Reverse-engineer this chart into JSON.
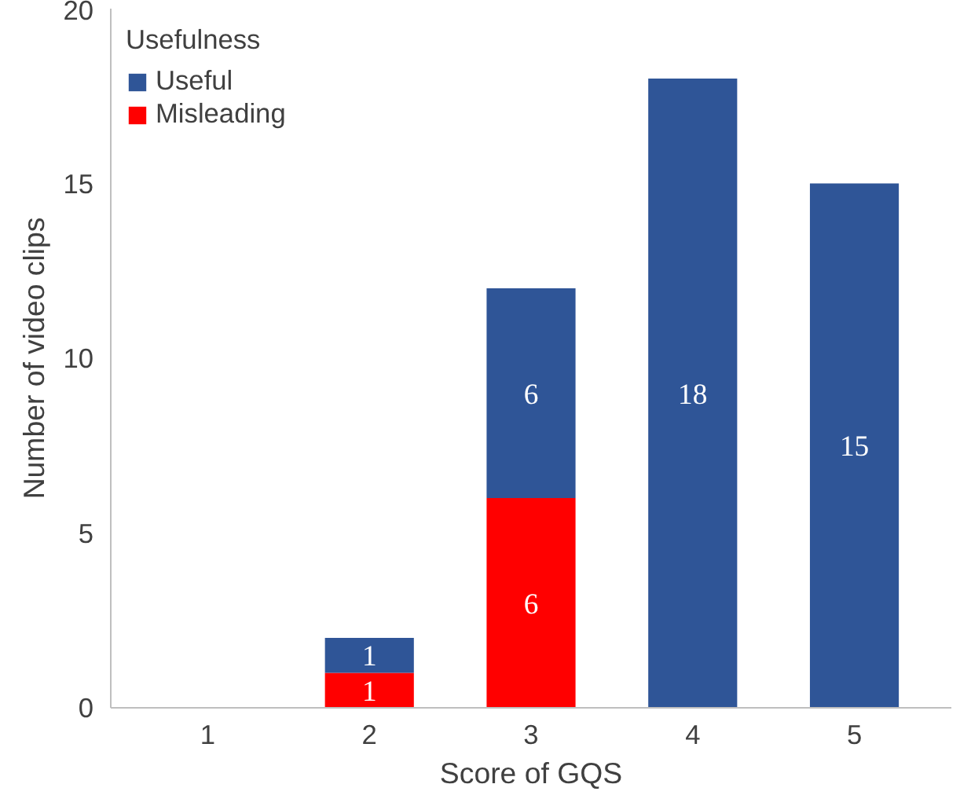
{
  "chart_data": {
    "type": "bar",
    "stacked": true,
    "xlabel": "Score of GQS",
    "ylabel": "Number of video clips",
    "legend_title": "Usefulness",
    "legend": "top left",
    "categories": [
      "1",
      "2",
      "3",
      "4",
      "5"
    ],
    "series": [
      {
        "name": "Misleading",
        "color": "#ff0000",
        "values": [
          0,
          1,
          6,
          0,
          0
        ],
        "value_labels": [
          null,
          "1",
          "6",
          null,
          null
        ]
      },
      {
        "name": "Useful",
        "color": "#2f5597",
        "values": [
          0,
          1,
          6,
          18,
          15
        ],
        "value_labels": [
          null,
          "1",
          "6",
          "18",
          "15"
        ]
      }
    ],
    "ylim": [
      0,
      20
    ],
    "yticks": [
      0,
      5,
      10,
      15,
      20
    ],
    "grid": false
  }
}
